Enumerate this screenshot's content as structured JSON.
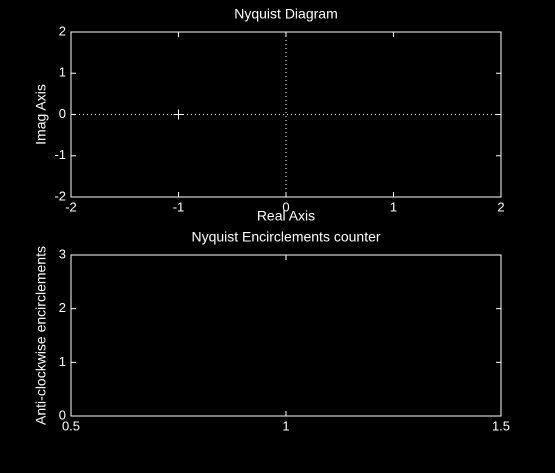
{
  "chart_data": [
    {
      "type": "scatter",
      "title": "Nyquist Diagram",
      "x_label": "Real Axis",
      "y_label": "Imag Axis",
      "x": [
        -1
      ],
      "values": [
        0
      ],
      "marker": "+",
      "color": "#ffffff",
      "xlim": [
        -2,
        2
      ],
      "xticks": [
        -2,
        -1,
        0,
        1,
        2
      ],
      "ylim": [
        -2,
        2
      ],
      "yticks": [
        -2,
        -1,
        0,
        1,
        2
      ],
      "zero_lines": true
    },
    {
      "type": "line",
      "title": "Nyquist Encirclements counter",
      "y_label": "Anti-clockwise encirclements",
      "xlim": [
        0.5,
        1.5
      ],
      "xticks": [
        0.5,
        1,
        1.5
      ],
      "ylim": [
        0,
        3
      ],
      "yticks": [
        0,
        1,
        2,
        3
      ],
      "zero_lines": false
    }
  ]
}
